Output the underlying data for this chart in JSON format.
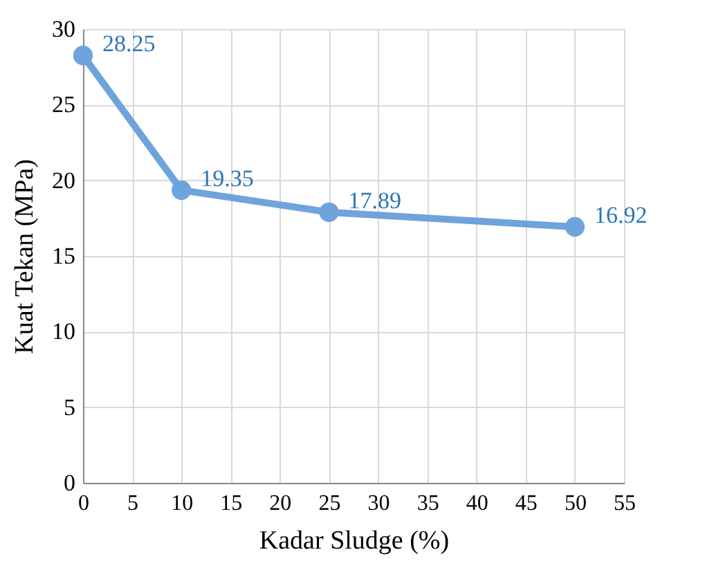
{
  "chart_data": {
    "type": "line",
    "xlabel": "Kadar Sludge (%)",
    "ylabel": "Kuat Tekan (MPa)",
    "x": [
      0,
      10,
      25,
      50
    ],
    "series": [
      {
        "color": "#6fa3dc",
        "values": [
          28.25,
          19.35,
          17.89,
          16.92
        ]
      }
    ],
    "xlim": [
      0,
      55
    ],
    "xticks": [
      0,
      5,
      10,
      15,
      20,
      25,
      30,
      35,
      40,
      45,
      50,
      55
    ],
    "ylim": [
      0,
      30
    ],
    "yticks": [
      0,
      5,
      10,
      15,
      20,
      25,
      30
    ],
    "grid": true,
    "marker": "circle",
    "line_style": "solid",
    "data_labels": true
  }
}
